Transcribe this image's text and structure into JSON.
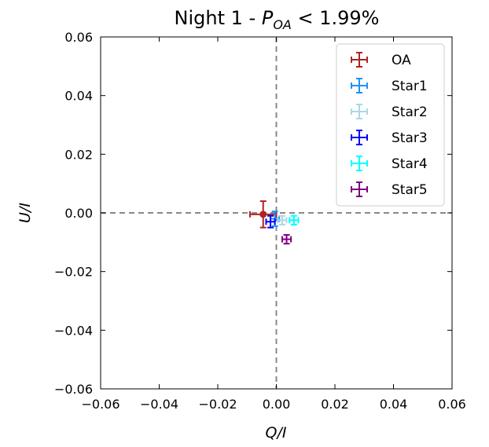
{
  "chart_data": {
    "type": "scatter",
    "title": "Night 1 - ",
    "title_math": {
      "symbol": "P",
      "subscript": "OA",
      "rest": " < 1.99%"
    },
    "xlabel": "Q/I",
    "ylabel": "U/I",
    "xlim": [
      -0.06,
      0.06
    ],
    "ylim": [
      -0.06,
      0.06
    ],
    "xticks": [
      -0.06,
      -0.04,
      -0.02,
      0.0,
      0.02,
      0.04,
      0.06
    ],
    "yticks": [
      -0.06,
      -0.04,
      -0.02,
      0.0,
      0.02,
      0.04,
      0.06
    ],
    "xtick_labels": [
      "−0.06",
      "−0.04",
      "−0.02",
      "0.00",
      "0.02",
      "0.04",
      "0.06"
    ],
    "ytick_labels": [
      "−0.06",
      "−0.04",
      "−0.02",
      "0.00",
      "0.02",
      "0.04",
      "0.06"
    ],
    "zero_lines": true,
    "grid": false,
    "legend_position": "top-right",
    "series": [
      {
        "name": "OA",
        "color": "#b22222",
        "x": -0.0045,
        "y": -0.0005,
        "xerr": 0.0045,
        "yerr": 0.0045,
        "marker": true
      },
      {
        "name": "Star1",
        "color": "#1e90ff",
        "x": -0.0005,
        "y": -0.002,
        "xerr": 0.0015,
        "yerr": 0.0025
      },
      {
        "name": "Star2",
        "color": "#a8d8e8",
        "x": 0.002,
        "y": -0.0025,
        "xerr": 0.0015,
        "yerr": 0.0015
      },
      {
        "name": "Star3",
        "color": "#0000ff",
        "x": -0.002,
        "y": -0.003,
        "xerr": 0.0015,
        "yerr": 0.002
      },
      {
        "name": "Star4",
        "color": "#00ffff",
        "x": 0.006,
        "y": -0.0025,
        "xerr": 0.0015,
        "yerr": 0.0015
      },
      {
        "name": "Star5",
        "color": "#800080",
        "x": 0.0035,
        "y": -0.009,
        "xerr": 0.0015,
        "yerr": 0.0015
      }
    ]
  }
}
